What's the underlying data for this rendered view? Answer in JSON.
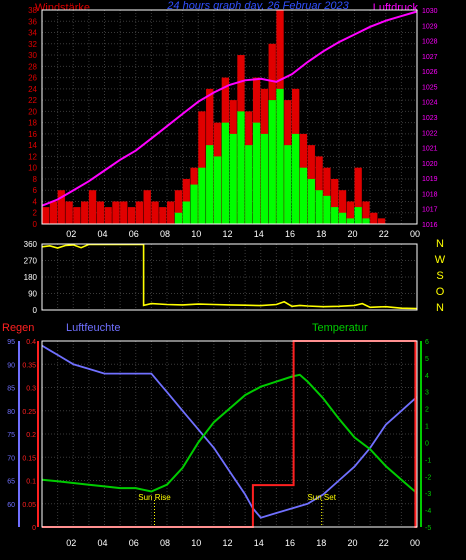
{
  "header": {
    "left_label": "Windstärke",
    "title": "24 hours graph day, 26 Februar 2023",
    "right_label": "Luftdruck"
  },
  "colors": {
    "background": "#000000",
    "grid": "#3a3a3a",
    "wind_red": "#e00000",
    "wind_green": "#00ff00",
    "pressure": "#ff00ff",
    "direction": "#ffff00",
    "humidity": "#7070ff",
    "temperature": "#00cc00",
    "rain": "#ff2020",
    "frame": "#ffffff",
    "title_blue": "#3050ff",
    "compass": "#ffff00"
  },
  "x_ticks": [
    "02",
    "04",
    "06",
    "08",
    "10",
    "12",
    "14",
    "16",
    "18",
    "20",
    "22",
    "00"
  ],
  "chart_data": [
    {
      "type": "bar",
      "name": "wind_and_pressure",
      "ylabel_left": "Windstärke",
      "ylabel_right": "Luftdruck",
      "ylim_left": [
        0,
        38
      ],
      "ylim_right": [
        1016,
        1030
      ],
      "y_ticks_left": [
        0,
        2,
        4,
        6,
        8,
        10,
        12,
        14,
        16,
        18,
        20,
        22,
        24,
        26,
        28,
        30,
        32,
        34,
        36,
        38
      ],
      "y_ticks_right": [
        1016,
        1017,
        1018,
        1019,
        1020,
        1021,
        1022,
        1023,
        1024,
        1025,
        1026,
        1027,
        1028,
        1029,
        1030
      ],
      "hours": [
        0.0,
        0.5,
        1.0,
        1.5,
        2.0,
        2.5,
        3.0,
        3.5,
        4.0,
        4.5,
        5.0,
        5.5,
        6.0,
        6.5,
        7.0,
        7.5,
        8.0,
        8.5,
        9.0,
        9.5,
        10.0,
        10.5,
        11.0,
        11.5,
        12.0,
        12.5,
        13.0,
        13.5,
        14.0,
        14.5,
        15.0,
        15.5,
        16.0,
        16.5,
        17.0,
        17.5,
        18.0,
        18.5,
        19.0,
        19.5,
        20.0,
        20.5,
        21.0,
        21.5,
        22.0,
        22.5,
        23.0,
        23.5
      ],
      "series": [
        {
          "name": "wind_gust",
          "color": "#e00000",
          "values": [
            3,
            4,
            6,
            4,
            3,
            4,
            6,
            4,
            3,
            4,
            4,
            3,
            4,
            6,
            4,
            3,
            4,
            6,
            8,
            10,
            20,
            24,
            18,
            26,
            22,
            30,
            20,
            26,
            24,
            32,
            38,
            22,
            24,
            16,
            14,
            12,
            10,
            8,
            6,
            4,
            10,
            4,
            2,
            1,
            0,
            0,
            0,
            0
          ]
        },
        {
          "name": "wind_mean",
          "color": "#00ff00",
          "values": [
            0,
            0,
            0,
            0,
            0,
            0,
            0,
            0,
            0,
            0,
            0,
            0,
            0,
            0,
            0,
            0,
            0,
            2,
            4,
            7,
            10,
            14,
            12,
            18,
            16,
            20,
            14,
            18,
            16,
            22,
            24,
            14,
            16,
            10,
            8,
            6,
            5,
            3,
            2,
            1,
            3,
            1,
            0,
            0,
            0,
            0,
            0,
            0
          ]
        },
        {
          "name": "Luftdruck",
          "color": "#ff00ff",
          "x": [
            0,
            1,
            2,
            3,
            4,
            5,
            6,
            7,
            8,
            9,
            10,
            11,
            12,
            13,
            14,
            15,
            16,
            17,
            18,
            19,
            20,
            21,
            22,
            23,
            24
          ],
          "values": [
            1017.2,
            1017.6,
            1018.2,
            1018.8,
            1019.5,
            1020.2,
            1020.8,
            1021.6,
            1022.4,
            1023.2,
            1024.0,
            1024.6,
            1025.1,
            1025.4,
            1025.5,
            1025.3,
            1025.8,
            1026.6,
            1027.3,
            1027.9,
            1028.4,
            1028.9,
            1029.3,
            1029.6,
            1029.9
          ]
        }
      ]
    },
    {
      "type": "line",
      "name": "wind_direction",
      "ylim": [
        0,
        360
      ],
      "y_ticks": [
        0,
        90,
        180,
        270,
        360
      ],
      "compass_labels": [
        "N",
        "W",
        "S",
        "O",
        "N"
      ],
      "x": [
        0,
        0.5,
        1,
        1.5,
        2,
        2.5,
        3,
        4,
        5,
        6,
        6.5,
        7,
        8,
        9,
        10,
        11,
        12,
        13,
        14,
        15,
        15.5,
        16,
        16.5,
        17,
        18,
        19,
        20,
        20.5,
        21,
        22,
        23,
        24
      ],
      "values": [
        345,
        350,
        338,
        352,
        355,
        340,
        358,
        358,
        358,
        358,
        25,
        35,
        30,
        28,
        32,
        30,
        28,
        26,
        24,
        30,
        45,
        20,
        25,
        22,
        18,
        20,
        25,
        35,
        15,
        18,
        10,
        8
      ]
    },
    {
      "type": "line",
      "name": "rain_humidity_temperature",
      "labels": {
        "left1": "Regen",
        "left2": "Luftfeuchte",
        "right": "Temperatur"
      },
      "rain_ylim": [
        0,
        0.4
      ],
      "rain_ticks": [
        0,
        0.05,
        0.1,
        0.15,
        0.2,
        0.25,
        0.3,
        0.35,
        0.4
      ],
      "humidity_ylim": [
        55,
        95
      ],
      "humidity_ticks": [
        60,
        65,
        70,
        75,
        80,
        85,
        90,
        95
      ],
      "temp_ylim": [
        -5,
        6
      ],
      "temp_ticks": [
        -5,
        -4,
        -3,
        -2,
        -1,
        0,
        1,
        2,
        3,
        4,
        5,
        6
      ],
      "annotations": [
        {
          "text": "Sun Rise",
          "hour": 7.2
        },
        {
          "text": "Sun Set",
          "hour": 17.9
        }
      ],
      "series": [
        {
          "name": "Luftfeuchte",
          "color": "#7070ff",
          "x": [
            0,
            0.5,
            1,
            2,
            3,
            4,
            5,
            6,
            7,
            7.5,
            8,
            9,
            10,
            11,
            12,
            13,
            13.5,
            14,
            15,
            16,
            17,
            18,
            19,
            20,
            21,
            22,
            23,
            24
          ],
          "values": [
            94,
            93,
            92,
            90,
            89,
            88,
            88,
            88,
            88,
            86,
            84,
            80,
            76,
            72,
            67,
            62,
            59,
            57,
            58,
            59,
            60,
            62,
            65,
            68,
            72,
            77,
            80,
            83
          ]
        },
        {
          "name": "Temperatur",
          "color": "#00cc00",
          "x": [
            0,
            1,
            2,
            3,
            4,
            5,
            6,
            6.5,
            7,
            7.5,
            8,
            9,
            10,
            11,
            12,
            13,
            14,
            15,
            16,
            16.5,
            17,
            18,
            19,
            20,
            21,
            22,
            23,
            24
          ],
          "values": [
            -2.2,
            -2.3,
            -2.4,
            -2.5,
            -2.6,
            -2.7,
            -2.7,
            -2.8,
            -2.9,
            -2.7,
            -2.5,
            -1.5,
            0.0,
            1.2,
            2.0,
            2.8,
            3.3,
            3.6,
            3.9,
            4.0,
            3.6,
            2.6,
            1.4,
            0.3,
            -0.4,
            -1.4,
            -2.2,
            -3.0
          ]
        },
        {
          "name": "Regen",
          "color": "#ff2020",
          "x": [
            0,
            13.5,
            13.5,
            16.1,
            16.1,
            23.9,
            23.9,
            24
          ],
          "values": [
            0,
            0,
            0.09,
            0.09,
            0.4,
            0.4,
            0,
            0
          ]
        }
      ]
    }
  ]
}
